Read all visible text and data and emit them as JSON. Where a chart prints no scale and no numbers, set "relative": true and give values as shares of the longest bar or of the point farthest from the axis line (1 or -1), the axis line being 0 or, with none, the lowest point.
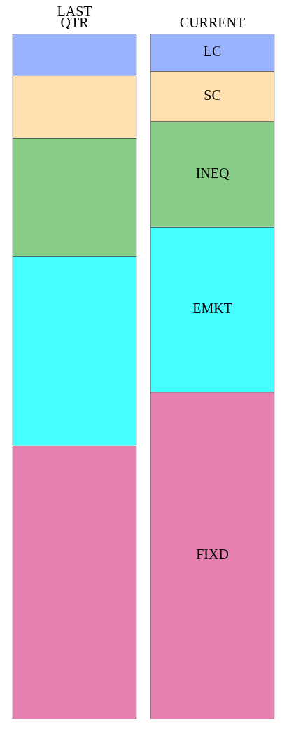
{
  "chart_data": {
    "type": "bar",
    "stacked": true,
    "relative": true,
    "legend": false,
    "grid": false,
    "categories": [
      "LAST QTR",
      "CURRENT"
    ],
    "series": [
      {
        "name": "FIXD",
        "color": "#e680b0",
        "values": [
          0.399,
          0.477
        ]
      },
      {
        "name": "EMKT",
        "color": "#44ffff",
        "values": [
          0.276,
          0.241
        ]
      },
      {
        "name": "INEQ",
        "color": "#88cc88",
        "values": [
          0.173,
          0.154
        ]
      },
      {
        "name": "SC",
        "color": "#ffe0b0",
        "values": [
          0.091,
          0.073
        ]
      },
      {
        "name": "LC",
        "color": "#99b3ff",
        "values": [
          0.061,
          0.055
        ]
      }
    ]
  }
}
